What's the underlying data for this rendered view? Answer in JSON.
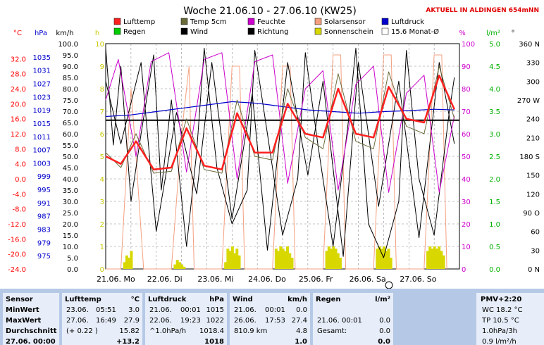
{
  "chart_data": {
    "type": "line",
    "title": "Woche 21.06.10 - 27.06.10 (KW25)",
    "notice": "AKTUELL IN ALDINGEN 654mNN",
    "x": {
      "categories": [
        "21.06. Mo",
        "22.06. Di",
        "23.06. Mi",
        "24.06. Do",
        "25.06. Fr",
        "26.06. Sa",
        "27.06. So"
      ],
      "range_days": [
        0,
        7
      ]
    },
    "axes": {
      "celsius": {
        "label": "°C",
        "color": "#ff0000",
        "ylim": [
          -24,
          36
        ],
        "ticks": [
          "32.0",
          "28.0",
          "24.0",
          "20.0",
          "16.0",
          "12.0",
          "8.0",
          "4.0",
          "0.0",
          "-4.0",
          "-8.0",
          "-12.0",
          "-16.0",
          "-20.0",
          "-24.0"
        ]
      },
      "hpa": {
        "label": "hPa",
        "color": "#0000cc",
        "ylim": [
          971,
          1039
        ],
        "ticks": [
          "1035",
          "1031",
          "1027",
          "1023",
          "1019",
          "1015",
          "1011",
          "1007",
          "1003",
          "999",
          "995",
          "991",
          "987",
          "983",
          "979",
          "975"
        ]
      },
      "kmh": {
        "label": "km/h",
        "color": "#000000",
        "ylim": [
          0,
          100
        ],
        "ticks": [
          "100.0",
          "95.0",
          "90.0",
          "85.0",
          "80.0",
          "75.0",
          "70.0",
          "65.0",
          "60.0",
          "55.0",
          "50.0",
          "45.0",
          "40.0",
          "35.0",
          "30.0",
          "25.0",
          "20.0",
          "15.0",
          "10.0",
          "5.0",
          "0.0"
        ]
      },
      "hours": {
        "label": "h",
        "color": "#c8c800",
        "ylim": [
          0,
          10
        ],
        "ticks": [
          "10",
          "9",
          "8",
          "7",
          "6",
          "5",
          "4",
          "3",
          "2",
          "1",
          "0"
        ]
      },
      "percent": {
        "label": "%",
        "color": "#cc00cc",
        "ylim": [
          0,
          100
        ],
        "ticks": [
          "100",
          "90",
          "80",
          "70",
          "60",
          "50",
          "40",
          "30",
          "20",
          "10",
          "0"
        ]
      },
      "rain": {
        "label": "l/m²",
        "color": "#00b000",
        "ylim": [
          0,
          5
        ],
        "ticks": [
          "5.0",
          "4.5",
          "4.0",
          "3.5",
          "3.0",
          "2.5",
          "2.0",
          "1.5",
          "1.0",
          "0.5",
          "0.0"
        ]
      },
      "direction": {
        "label": "°",
        "color": "#000000",
        "ylim": [
          0,
          360
        ],
        "ticks": [
          "360 N",
          "330",
          "300",
          "270 W",
          "240",
          "210",
          "180 S",
          "150",
          "120",
          "90 O",
          "60",
          "30",
          "0 N"
        ]
      }
    },
    "legend": [
      {
        "label": "Lufttemp",
        "color": "#ff2020"
      },
      {
        "label": "Temp 5cm",
        "color": "#6b6b3a"
      },
      {
        "label": "Feuchte",
        "color": "#cc00cc"
      },
      {
        "label": "Solarsensor",
        "color": "#f4a080"
      },
      {
        "label": "Luftdruck",
        "color": "#0000cc"
      },
      {
        "label": "Regen",
        "color": "#00cc00"
      },
      {
        "label": "Wind",
        "color": "#000000"
      },
      {
        "label": "Richtung",
        "color": "#000000"
      },
      {
        "label": "Sonnenschein",
        "color": "#d8d800"
      },
      {
        "label": "15.6 Monat-Ø",
        "color": "#ffffff"
      }
    ],
    "series": [
      {
        "name": "Lufttemp",
        "unit": "°C",
        "points": [
          [
            0,
            6.0
          ],
          [
            0.3,
            4.0
          ],
          [
            0.6,
            10.0
          ],
          [
            0.95,
            2.5
          ],
          [
            1.3,
            3.0
          ],
          [
            1.6,
            13.5
          ],
          [
            1.95,
            3.5
          ],
          [
            2.3,
            2.5
          ],
          [
            2.6,
            17.5
          ],
          [
            2.95,
            7.0
          ],
          [
            3.3,
            7.0
          ],
          [
            3.6,
            20.0
          ],
          [
            3.95,
            12.0
          ],
          [
            4.3,
            11.0
          ],
          [
            4.6,
            24.0
          ],
          [
            4.95,
            12.0
          ],
          [
            5.3,
            11.0
          ],
          [
            5.6,
            24.5
          ],
          [
            5.95,
            16.0
          ],
          [
            6.3,
            15.0
          ],
          [
            6.6,
            27.5
          ],
          [
            6.9,
            18.5
          ]
        ]
      },
      {
        "name": "Temp 5cm",
        "unit": "°C",
        "points": [
          [
            0,
            7.0
          ],
          [
            0.3,
            3.0
          ],
          [
            0.6,
            12.0
          ],
          [
            0.95,
            1.5
          ],
          [
            1.3,
            2.0
          ],
          [
            1.6,
            16.0
          ],
          [
            1.95,
            2.5
          ],
          [
            2.3,
            1.5
          ],
          [
            2.6,
            21.0
          ],
          [
            2.95,
            6.0
          ],
          [
            3.3,
            5.0
          ],
          [
            3.6,
            24.0
          ],
          [
            3.95,
            11.0
          ],
          [
            4.3,
            8.0
          ],
          [
            4.6,
            28.0
          ],
          [
            4.95,
            10.0
          ],
          [
            5.3,
            8.0
          ],
          [
            5.6,
            28.5
          ],
          [
            5.95,
            14.0
          ],
          [
            6.3,
            12.0
          ],
          [
            6.6,
            30.0
          ],
          [
            6.9,
            16.0
          ]
        ]
      },
      {
        "name": "Feuchte",
        "unit": "%",
        "points": [
          [
            0,
            75
          ],
          [
            0.25,
            93
          ],
          [
            0.6,
            50
          ],
          [
            0.9,
            92
          ],
          [
            1.25,
            96
          ],
          [
            1.6,
            43
          ],
          [
            1.95,
            93
          ],
          [
            2.3,
            96
          ],
          [
            2.6,
            40
          ],
          [
            2.95,
            92
          ],
          [
            3.3,
            95
          ],
          [
            3.6,
            38
          ],
          [
            3.95,
            80
          ],
          [
            4.3,
            88
          ],
          [
            4.6,
            35
          ],
          [
            4.95,
            82
          ],
          [
            5.3,
            90
          ],
          [
            5.6,
            34
          ],
          [
            5.95,
            78
          ],
          [
            6.3,
            86
          ],
          [
            6.6,
            34
          ],
          [
            6.9,
            68
          ]
        ]
      },
      {
        "name": "Luftdruck",
        "unit": "hPa",
        "points": [
          [
            0,
            1017.0
          ],
          [
            0.5,
            1017.5
          ],
          [
            1.0,
            1018.5
          ],
          [
            1.5,
            1019.5
          ],
          [
            2.0,
            1020.5
          ],
          [
            2.5,
            1021.5
          ],
          [
            3.0,
            1021.0
          ],
          [
            3.5,
            1020.0
          ],
          [
            4.0,
            1019.0
          ],
          [
            4.5,
            1018.5
          ],
          [
            5.0,
            1018.0
          ],
          [
            5.5,
            1018.5
          ],
          [
            6.0,
            1018.8
          ],
          [
            6.5,
            1019.2
          ],
          [
            6.9,
            1019.0
          ]
        ]
      },
      {
        "name": "Wind",
        "unit": "km/h",
        "points": [
          [
            0,
            98
          ],
          [
            0.15,
            55
          ],
          [
            0.3,
            90
          ],
          [
            0.5,
            30
          ],
          [
            0.7,
            60
          ],
          [
            0.95,
            95
          ],
          [
            1.1,
            35
          ],
          [
            1.3,
            75
          ],
          [
            1.6,
            10
          ],
          [
            1.8,
            52
          ],
          [
            1.95,
            98
          ],
          [
            2.2,
            45
          ],
          [
            2.5,
            20
          ],
          [
            2.8,
            35
          ],
          [
            2.95,
            97
          ],
          [
            3.2,
            60
          ],
          [
            3.5,
            15
          ],
          [
            3.8,
            40
          ],
          [
            3.95,
            96
          ],
          [
            4.2,
            55
          ],
          [
            4.5,
            10
          ],
          [
            4.8,
            65
          ],
          [
            4.95,
            98
          ],
          [
            5.2,
            20
          ],
          [
            5.5,
            5
          ],
          [
            5.8,
            30
          ],
          [
            5.95,
            97
          ],
          [
            6.2,
            40
          ],
          [
            6.5,
            15
          ],
          [
            6.8,
            70
          ],
          [
            6.9,
            85
          ]
        ]
      },
      {
        "name": "Richtung",
        "unit": "°",
        "points": [
          [
            0,
            300
          ],
          [
            0.3,
            200
          ],
          [
            0.7,
            330
          ],
          [
            1.0,
            60
          ],
          [
            1.4,
            250
          ],
          [
            1.8,
            120
          ],
          [
            2.1,
            330
          ],
          [
            2.5,
            80
          ],
          [
            2.9,
            280
          ],
          [
            3.2,
            30
          ],
          [
            3.6,
            330
          ],
          [
            4.0,
            150
          ],
          [
            4.3,
            300
          ],
          [
            4.7,
            20
          ],
          [
            5.0,
            330
          ],
          [
            5.4,
            100
          ],
          [
            5.8,
            300
          ],
          [
            6.2,
            50
          ],
          [
            6.6,
            330
          ],
          [
            6.9,
            200
          ]
        ]
      },
      {
        "name": "Regen",
        "unit": "l/m²",
        "points": [
          [
            0,
            0
          ],
          [
            6.9,
            0
          ]
        ]
      },
      {
        "name": "Solarsensor",
        "unit": "",
        "points": [
          [
            0,
            0
          ],
          [
            0.3,
            0
          ],
          [
            0.5,
            8
          ],
          [
            0.6,
            5
          ],
          [
            0.75,
            0
          ],
          [
            1.3,
            0
          ],
          [
            1.5,
            6
          ],
          [
            1.65,
            9
          ],
          [
            1.75,
            0
          ],
          [
            2.3,
            0
          ],
          [
            2.5,
            9
          ],
          [
            2.65,
            9
          ],
          [
            2.75,
            0
          ],
          [
            3.3,
            0
          ],
          [
            3.5,
            9
          ],
          [
            3.65,
            9
          ],
          [
            3.75,
            0
          ],
          [
            4.3,
            0
          ],
          [
            4.5,
            9.5
          ],
          [
            4.65,
            9.5
          ],
          [
            4.75,
            0
          ],
          [
            5.3,
            0
          ],
          [
            5.5,
            9.5
          ],
          [
            5.65,
            9.5
          ],
          [
            5.75,
            0
          ],
          [
            6.3,
            0
          ],
          [
            6.5,
            9.5
          ],
          [
            6.65,
            9.5
          ],
          [
            6.75,
            0
          ]
        ]
      },
      {
        "name": "Sonnenschein",
        "unit": "h",
        "bars_per_day": [
          [
            0,
            0.3,
            0.6,
            0.5,
            0.8,
            0,
            0,
            0,
            0
          ],
          [
            0,
            0.2,
            0.4,
            0.3,
            0.2,
            0.1,
            0,
            0,
            0
          ],
          [
            0,
            0.3,
            0.9,
            0.8,
            1.0,
            0.7,
            0.9,
            0.6,
            0
          ],
          [
            0,
            0.9,
            0.8,
            1.0,
            0.9,
            0.8,
            1.0,
            0.7,
            0.5
          ],
          [
            0,
            0.8,
            1.0,
            0.9,
            1.0,
            0.9,
            0.7,
            0.5,
            0
          ],
          [
            0,
            0.9,
            1.0,
            0.9,
            1.0,
            0.8,
            0.9,
            0.5,
            0
          ],
          [
            0,
            0.8,
            1.0,
            0.9,
            1.0,
            0.9,
            1.0,
            0.8,
            0.6
          ]
        ]
      },
      {
        "name": "15.6 Monat-Ø",
        "unit": "°C",
        "points": [
          [
            0,
            15.6
          ],
          [
            7,
            15.6
          ]
        ]
      }
    ],
    "grid": true,
    "legend_placement": "top"
  },
  "table": {
    "left": {
      "labels": [
        "Sensor",
        "MinWert",
        "MaxWert",
        "Durchschnitt",
        "27.06. 00:00"
      ],
      "lufttemp": {
        "title": "Lufttemp",
        "unit": "°C",
        "rows": [
          [
            "23.06.",
            "05:51",
            "3.0"
          ],
          [
            "27.06.",
            "16:49",
            "27.9"
          ],
          [
            "(+ 0.22 )",
            "",
            "15.82"
          ],
          [
            "",
            "",
            "+13.2"
          ]
        ]
      },
      "luftdruck": {
        "title": "Luftdruck",
        "unit": "hPa",
        "rows": [
          [
            "21.06.",
            "00:01",
            "1015"
          ],
          [
            "22.06.",
            "19:23",
            "1022"
          ],
          [
            "^1.0hPa/h",
            "",
            "1018.4"
          ],
          [
            "",
            "",
            "1018"
          ]
        ]
      },
      "wind": {
        "title": "Wind",
        "unit": "km/h",
        "rows": [
          [
            "21.06.",
            "00:01",
            "0.0"
          ],
          [
            "26.06.",
            "17:53",
            "27.4"
          ],
          [
            "810.9 km",
            "",
            "4.8"
          ],
          [
            "",
            "",
            "1.0"
          ]
        ]
      },
      "regen": {
        "title": "Regen",
        "unit": "l/m²",
        "rows": [
          [
            "",
            ""
          ],
          [
            "21.06.  00:01",
            "0.0"
          ],
          [
            "Gesamt:",
            "0.0"
          ],
          [
            "",
            "0.0"
          ]
        ]
      }
    },
    "right": {
      "title": "PMV+2:20",
      "lines": [
        "WC 18.2 °C",
        "TP 10.5 °C",
        "1.0hPa/3h",
        "0.9 l/m²/h"
      ]
    }
  }
}
